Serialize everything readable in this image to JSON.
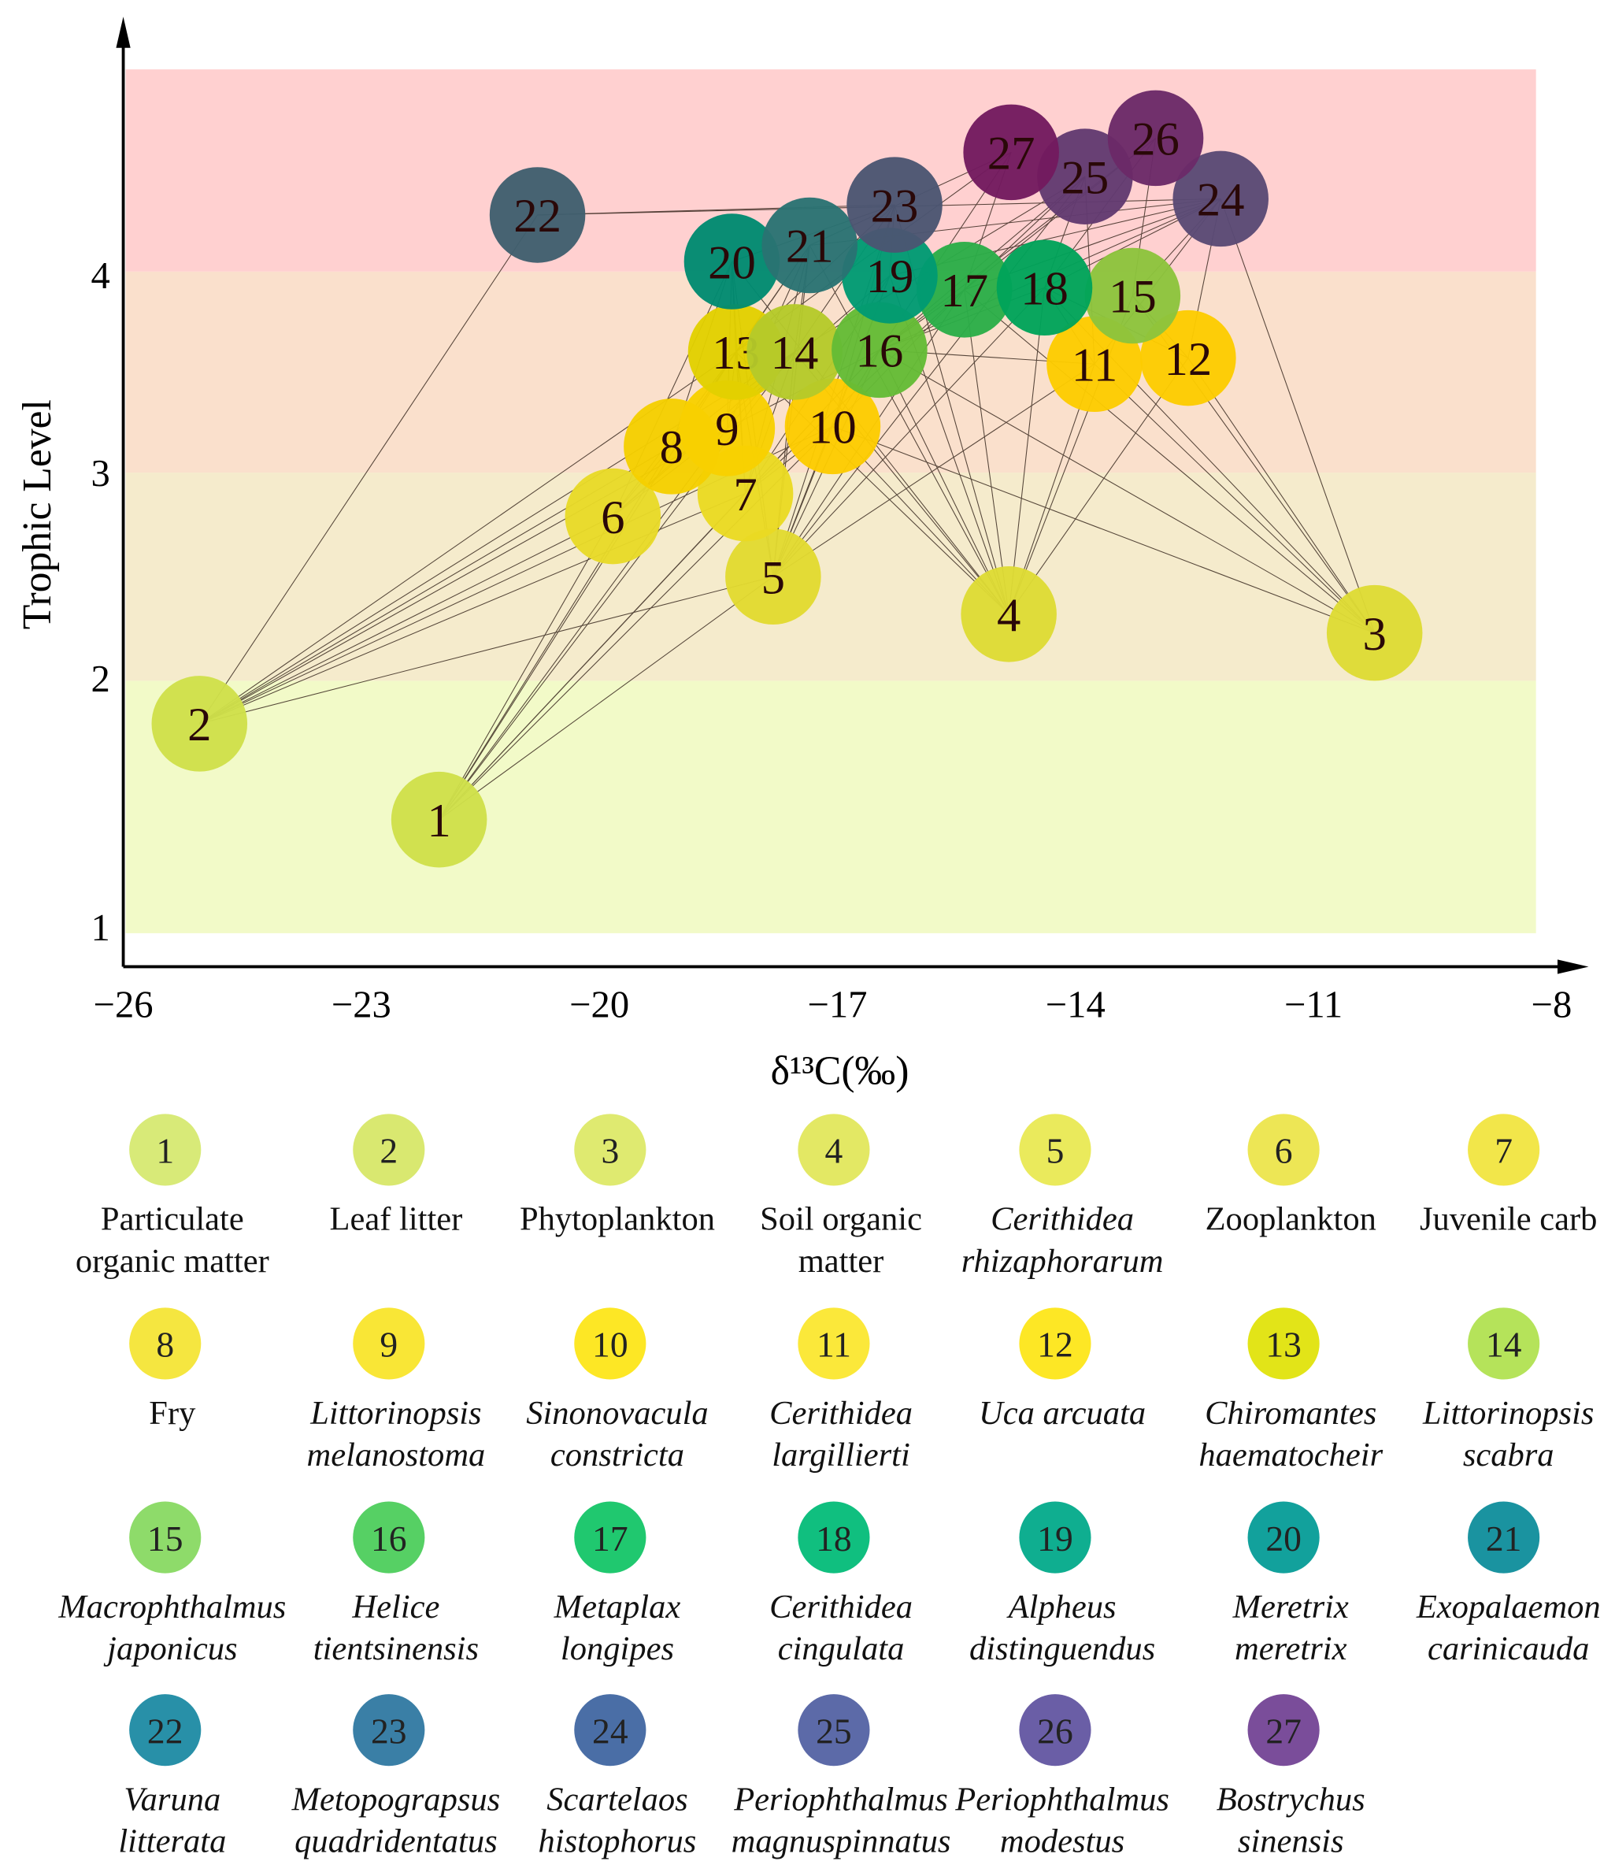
{
  "chart_data": {
    "type": "scatter",
    "subtype": "food-web network",
    "xlabel": "δ¹³C(‰)",
    "ylabel": "Trophic Level",
    "xlim": [
      -26,
      -8
    ],
    "ylim": [
      1,
      5
    ],
    "xticks": [
      "−26",
      "−23",
      "−20",
      "−17",
      "−14",
      "−11",
      "−8"
    ],
    "xtick_values": [
      -26,
      -23,
      -20,
      -17,
      -14,
      -11,
      -8
    ],
    "yticks": [
      "1",
      "2",
      "3",
      "4"
    ],
    "ytick_values": [
      1,
      2,
      3,
      4
    ],
    "bands": [
      {
        "from": 1,
        "to": 2,
        "color": "#f2fac8"
      },
      {
        "from": 2,
        "to": 3,
        "color": "#f5ebcc"
      },
      {
        "from": 3,
        "to": 4,
        "color": "#fae0cc"
      },
      {
        "from": 4,
        "to": 5,
        "color": "#ffd0d0"
      }
    ],
    "nodes": [
      {
        "id": "1",
        "x": -22.02,
        "y": 1.45,
        "color": "#cfe04a",
        "legend_color": "#d8ea78",
        "name": [
          "Particulate",
          "organic matter"
        ],
        "italic": false
      },
      {
        "id": "2",
        "x": -25.04,
        "y": 1.83,
        "color": "#cfe04a",
        "legend_color": "#d9e870",
        "name": [
          "Leaf litter"
        ],
        "italic": false
      },
      {
        "id": "3",
        "x": -10.23,
        "y": 2.23,
        "color": "#dedb34",
        "legend_color": "#dfea70",
        "name": [
          "Phytoplankton"
        ],
        "italic": false
      },
      {
        "id": "4",
        "x": -14.84,
        "y": 2.32,
        "color": "#dedb34",
        "legend_color": "#e3e864",
        "name": [
          "Soil organic",
          "matter"
        ],
        "italic": false
      },
      {
        "id": "5",
        "x": -17.81,
        "y": 2.5,
        "color": "#e2da30",
        "legend_color": "#eaea5c",
        "name": [
          "Cerithidea",
          "rhizaphorarum"
        ],
        "italic": true
      },
      {
        "id": "6",
        "x": -19.83,
        "y": 2.79,
        "color": "#e8da28",
        "legend_color": "#ede655",
        "name": [
          "Zooplankton"
        ],
        "italic": false
      },
      {
        "id": "7",
        "x": -18.16,
        "y": 2.9,
        "color": "#eada22",
        "legend_color": "#f2e64a",
        "name": [
          "Juvenile carb"
        ],
        "italic": false
      },
      {
        "id": "8",
        "x": -19.09,
        "y": 3.13,
        "color": "#f5cf00",
        "legend_color": "#f5e640",
        "name": [
          "Fry"
        ],
        "italic": false
      },
      {
        "id": "9",
        "x": -18.39,
        "y": 3.22,
        "color": "#f8d000",
        "legend_color": "#f9e636",
        "name": [
          "Littorinopsis",
          "melanostoma"
        ],
        "italic": true
      },
      {
        "id": "10",
        "x": -17.06,
        "y": 3.23,
        "color": "#fdcc00",
        "legend_color": "#fde725",
        "name": [
          "Sinonovacula",
          "constricta"
        ],
        "italic": true
      },
      {
        "id": "11",
        "x": -13.76,
        "y": 3.54,
        "color": "#fdcc00",
        "legend_color": "#fbe83a",
        "name": [
          "Cerithidea",
          "largillierti"
        ],
        "italic": true
      },
      {
        "id": "12",
        "x": -12.58,
        "y": 3.57,
        "color": "#fdcc00",
        "legend_color": "#fde725",
        "name": [
          "Uca arcuata"
        ],
        "italic": true
      },
      {
        "id": "13",
        "x": -18.28,
        "y": 3.6,
        "color": "#e2d000",
        "legend_color": "#e2e418",
        "name": [
          "Chiromantes",
          "haematocheir"
        ],
        "italic": true
      },
      {
        "id": "14",
        "x": -17.54,
        "y": 3.6,
        "color": "#b5ca2a",
        "legend_color": "#b5e35a",
        "name": [
          "Littorinopsis",
          "scabra"
        ],
        "italic": true
      },
      {
        "id": "15",
        "x": -13.28,
        "y": 3.88,
        "color": "#8dc43c",
        "legend_color": "#8edb6a",
        "name": [
          "Macrophthalmus",
          "japonicus"
        ],
        "italic": true
      },
      {
        "id": "16",
        "x": -16.47,
        "y": 3.61,
        "color": "#64bb35",
        "legend_color": "#56d064",
        "name": [
          "Helice",
          "tientsinensis"
        ],
        "italic": true
      },
      {
        "id": "17",
        "x": -15.4,
        "y": 3.91,
        "color": "#2bae48",
        "legend_color": "#20c86f",
        "name": [
          "Metaplax",
          "longipes"
        ],
        "italic": true
      },
      {
        "id": "18",
        "x": -14.39,
        "y": 3.92,
        "color": "#00a35a",
        "legend_color": "#10bf7f",
        "name": [
          "Cerithidea",
          "cingulata"
        ],
        "italic": true
      },
      {
        "id": "19",
        "x": -16.34,
        "y": 3.98,
        "color": "#009a72",
        "legend_color": "#0fae90",
        "name": [
          "Alpheus",
          "distinguendus"
        ],
        "italic": true
      },
      {
        "id": "20",
        "x": -18.33,
        "y": 4.05,
        "color": "#008a70",
        "legend_color": "#12a19c",
        "name": [
          "Meretrix",
          "meretrix"
        ],
        "italic": true
      },
      {
        "id": "21",
        "x": -17.35,
        "y": 4.13,
        "color": "#2a7272",
        "legend_color": "#1a93a0",
        "name": [
          "Exopalaemon",
          "carinicauda"
        ],
        "italic": true
      },
      {
        "id": "22",
        "x": -20.78,
        "y": 4.28,
        "color": "#3f5f6e",
        "legend_color": "#2890a8",
        "name": [
          "Varuna",
          "litterata"
        ],
        "italic": true
      },
      {
        "id": "23",
        "x": -16.28,
        "y": 4.33,
        "color": "#4b5571",
        "legend_color": "#3a7fa6",
        "name": [
          "Metopograpsus",
          "quadridentatus"
        ],
        "italic": true
      },
      {
        "id": "24",
        "x": -12.17,
        "y": 4.36,
        "color": "#5a4a75",
        "legend_color": "#4a6ea6",
        "name": [
          "Scartelaos",
          "histophorus"
        ],
        "italic": true
      },
      {
        "id": "25",
        "x": -13.88,
        "y": 4.47,
        "color": "#623a70",
        "legend_color": "#5c6aa8",
        "name": [
          "Periophthalmus",
          "magnuspinnatus"
        ],
        "italic": true
      },
      {
        "id": "26",
        "x": -12.99,
        "y": 4.66,
        "color": "#6b2a68",
        "legend_color": "#6a5ea6",
        "name": [
          "Periophthalmus",
          "modestus"
        ],
        "italic": true
      },
      {
        "id": "27",
        "x": -14.81,
        "y": 4.59,
        "color": "#731a5f",
        "legend_color": "#7a4d9a",
        "name": [
          "Bostrychus",
          "sinensis"
        ],
        "italic": true
      }
    ],
    "edges": [
      [
        1,
        5
      ],
      [
        1,
        6
      ],
      [
        1,
        7
      ],
      [
        1,
        8
      ],
      [
        1,
        9
      ],
      [
        1,
        13
      ],
      [
        1,
        14
      ],
      [
        1,
        10
      ],
      [
        1,
        16
      ],
      [
        2,
        5
      ],
      [
        2,
        6
      ],
      [
        2,
        7
      ],
      [
        2,
        8
      ],
      [
        2,
        9
      ],
      [
        2,
        13
      ],
      [
        2,
        14
      ],
      [
        2,
        22
      ],
      [
        2,
        10
      ],
      [
        3,
        11
      ],
      [
        3,
        12
      ],
      [
        3,
        15
      ],
      [
        3,
        24
      ],
      [
        3,
        17
      ],
      [
        3,
        18
      ],
      [
        3,
        16
      ],
      [
        3,
        10
      ],
      [
        4,
        10
      ],
      [
        4,
        11
      ],
      [
        4,
        12
      ],
      [
        4,
        13
      ],
      [
        4,
        14
      ],
      [
        4,
        15
      ],
      [
        4,
        16
      ],
      [
        4,
        17
      ],
      [
        4,
        18
      ],
      [
        4,
        19
      ],
      [
        4,
        20
      ],
      [
        4,
        21
      ],
      [
        4,
        23
      ],
      [
        5,
        10
      ],
      [
        5,
        11
      ],
      [
        5,
        13
      ],
      [
        5,
        14
      ],
      [
        5,
        16
      ],
      [
        5,
        17
      ],
      [
        5,
        18
      ],
      [
        5,
        19
      ],
      [
        5,
        20
      ],
      [
        5,
        21
      ],
      [
        5,
        23
      ],
      [
        5,
        25
      ],
      [
        6,
        8
      ],
      [
        6,
        9
      ],
      [
        6,
        13
      ],
      [
        6,
        14
      ],
      [
        6,
        19
      ],
      [
        6,
        20
      ],
      [
        7,
        10
      ],
      [
        7,
        13
      ],
      [
        7,
        14
      ],
      [
        7,
        16
      ],
      [
        7,
        17
      ],
      [
        7,
        19
      ],
      [
        7,
        20
      ],
      [
        7,
        21
      ],
      [
        8,
        13
      ],
      [
        8,
        14
      ],
      [
        8,
        20
      ],
      [
        8,
        21
      ],
      [
        9,
        13
      ],
      [
        9,
        14
      ],
      [
        9,
        20
      ],
      [
        9,
        21
      ],
      [
        9,
        16
      ],
      [
        10,
        16
      ],
      [
        10,
        19
      ],
      [
        10,
        23
      ],
      [
        10,
        17
      ],
      [
        11,
        16
      ],
      [
        11,
        18
      ],
      [
        11,
        25
      ],
      [
        11,
        24
      ],
      [
        12,
        18
      ],
      [
        12,
        24
      ],
      [
        12,
        15
      ],
      [
        13,
        20
      ],
      [
        13,
        21
      ],
      [
        13,
        23
      ],
      [
        13,
        27
      ],
      [
        14,
        21
      ],
      [
        14,
        23
      ],
      [
        14,
        25
      ],
      [
        16,
        17
      ],
      [
        16,
        18
      ],
      [
        16,
        24
      ],
      [
        16,
        25
      ],
      [
        16,
        27
      ],
      [
        16,
        26
      ],
      [
        17,
        24
      ],
      [
        17,
        25
      ],
      [
        17,
        26
      ],
      [
        17,
        27
      ],
      [
        18,
        24
      ],
      [
        18,
        25
      ],
      [
        18,
        26
      ],
      [
        15,
        24
      ],
      [
        15,
        26
      ],
      [
        19,
        23
      ],
      [
        19,
        24
      ],
      [
        20,
        23
      ],
      [
        21,
        24
      ],
      [
        21,
        27
      ],
      [
        22,
        23
      ],
      [
        22,
        24
      ]
    ]
  }
}
